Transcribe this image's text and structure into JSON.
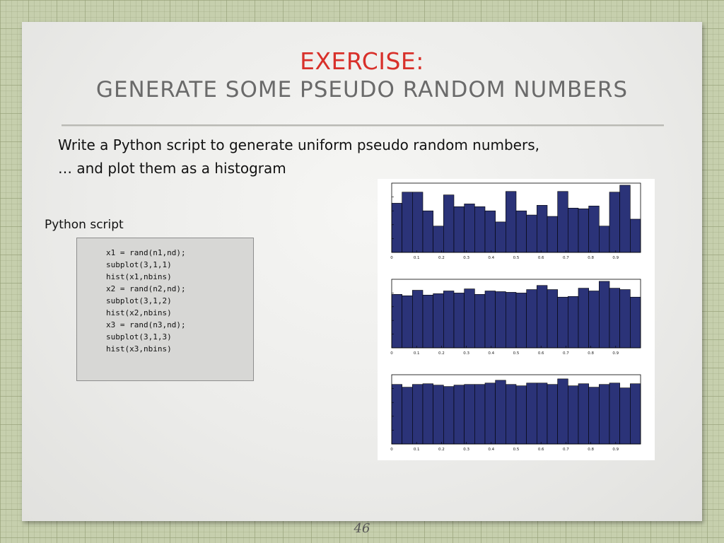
{
  "slide": {
    "title_line1": "EXERCISE:",
    "title_line2": "GENERATE SOME PSEUDO RANDOM NUMBERS",
    "body_line1": "Write a Python script to generate uniform pseudo random numbers,",
    "body_line2": "… and plot them as a histogram",
    "code_label": "Python script",
    "code_lines": [
      "x1 = rand(n1,nd);",
      "subplot(3,1,1)",
      "hist(x1,nbins)",
      "x2 = rand(n2,nd);",
      "subplot(3,1,2)",
      "hist(x2,nbins)",
      "x3 = rand(n3,nd);",
      "subplot(3,1,3)",
      "hist(x3,nbins)"
    ],
    "page_number": "46"
  },
  "colors": {
    "title_accent": "#d8302a",
    "subtitle_gray": "#6a6a6a",
    "bar_fill": "#2b3378",
    "background_grid": "#c6cfad"
  },
  "chart_data": [
    {
      "type": "bar",
      "x_tick_labels": [
        "0",
        "0.1",
        "0.2",
        "0.3",
        "0.4",
        "0.5",
        "0.6",
        "0.7",
        "0.8",
        "0.9"
      ],
      "xlim": [
        0,
        1
      ],
      "ylim": [
        0,
        1
      ],
      "values": [
        0.71,
        0.87,
        0.87,
        0.6,
        0.38,
        0.83,
        0.66,
        0.7,
        0.66,
        0.6,
        0.44,
        0.88,
        0.6,
        0.54,
        0.68,
        0.52,
        0.88,
        0.64,
        0.63,
        0.67,
        0.38,
        0.87,
        0.97,
        0.48
      ]
    },
    {
      "type": "bar",
      "x_tick_labels": [
        "0",
        "0.1",
        "0.2",
        "0.3",
        "0.4",
        "0.5",
        "0.6",
        "0.7",
        "0.8",
        "0.9"
      ],
      "xlim": [
        0,
        1
      ],
      "ylim": [
        0,
        1
      ],
      "values": [
        0.78,
        0.76,
        0.84,
        0.77,
        0.79,
        0.83,
        0.8,
        0.86,
        0.78,
        0.83,
        0.82,
        0.81,
        0.8,
        0.85,
        0.91,
        0.85,
        0.74,
        0.75,
        0.87,
        0.83,
        0.97,
        0.87,
        0.85,
        0.74
      ]
    },
    {
      "type": "bar",
      "x_tick_labels": [
        "0",
        "0.1",
        "0.2",
        "0.3",
        "0.4",
        "0.5",
        "0.6",
        "0.7",
        "0.8",
        "0.9"
      ],
      "xlim": [
        0,
        1
      ],
      "ylim": [
        0,
        1
      ],
      "values": [
        0.86,
        0.82,
        0.86,
        0.87,
        0.85,
        0.83,
        0.85,
        0.86,
        0.86,
        0.88,
        0.92,
        0.86,
        0.84,
        0.88,
        0.88,
        0.86,
        0.94,
        0.84,
        0.87,
        0.82,
        0.86,
        0.88,
        0.81,
        0.87
      ]
    }
  ]
}
